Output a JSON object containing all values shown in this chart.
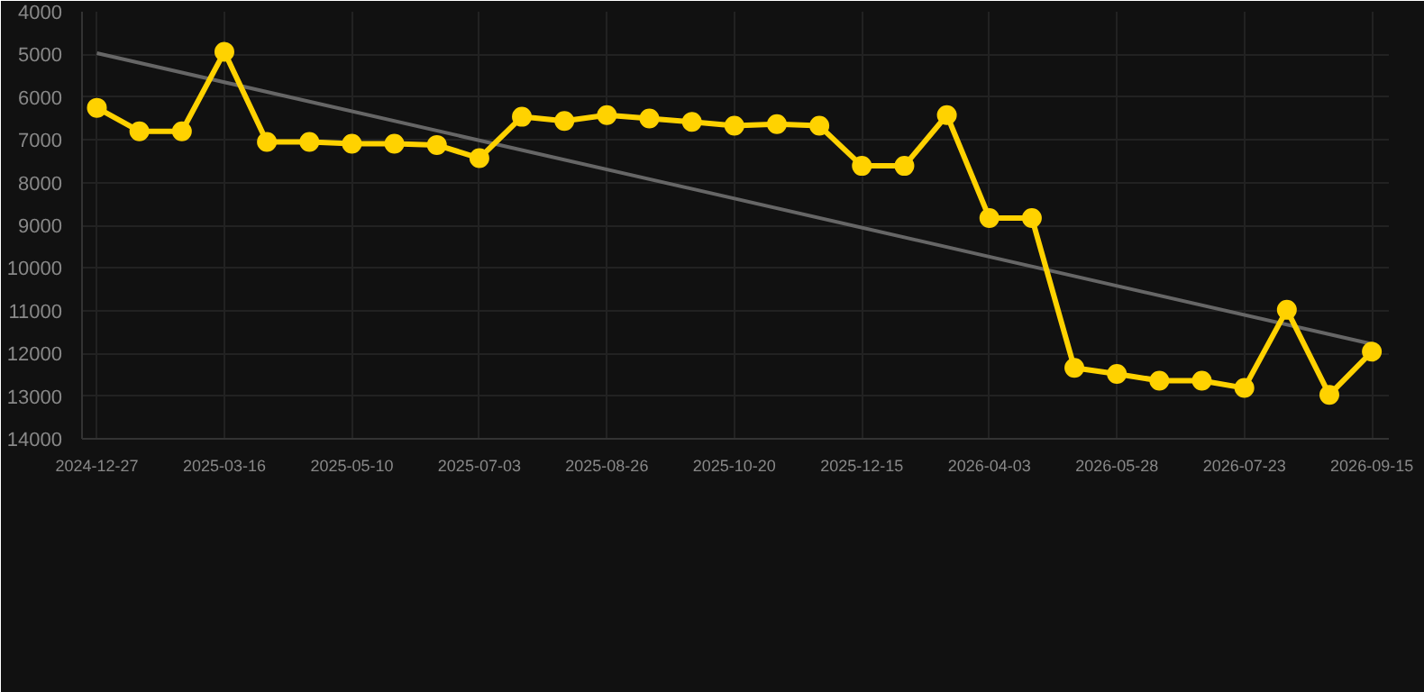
{
  "chart_data": {
    "type": "line",
    "categories": [
      "2024-12-27",
      null,
      null,
      "2025-03-16",
      null,
      null,
      "2025-05-10",
      null,
      null,
      "2025-07-03",
      null,
      null,
      "2025-08-26",
      null,
      null,
      "2025-10-20",
      null,
      null,
      "2025-12-15",
      null,
      null,
      "2026-04-03",
      null,
      null,
      "2026-05-28",
      null,
      null,
      "2026-07-23",
      null,
      null,
      "2026-09-15"
    ],
    "series": [
      {
        "color": "#ffd200",
        "marker": "circle",
        "values": [
          6250,
          6800,
          6800,
          4940,
          7050,
          7050,
          7090,
          7090,
          7120,
          7430,
          6460,
          6560,
          6420,
          6500,
          6580,
          6670,
          6630,
          6670,
          7610,
          7610,
          6420,
          8830,
          8830,
          12340,
          12480,
          12640,
          12640,
          12810,
          10980,
          12970,
          11960
        ]
      },
      {
        "type": "line",
        "color": "#666666",
        "marker": "none",
        "values": [
          4970,
          null,
          null,
          null,
          null,
          null,
          null,
          null,
          null,
          null,
          null,
          null,
          null,
          null,
          null,
          null,
          null,
          null,
          null,
          null,
          null,
          null,
          null,
          null,
          null,
          null,
          null,
          null,
          null,
          null,
          11780
        ]
      }
    ],
    "ylim": [
      14000,
      4000
    ],
    "yticks": [
      4000,
      5000,
      6000,
      7000,
      8000,
      9000,
      10000,
      11000,
      12000,
      13000,
      14000
    ],
    "grid": true,
    "line_style": "solid"
  }
}
